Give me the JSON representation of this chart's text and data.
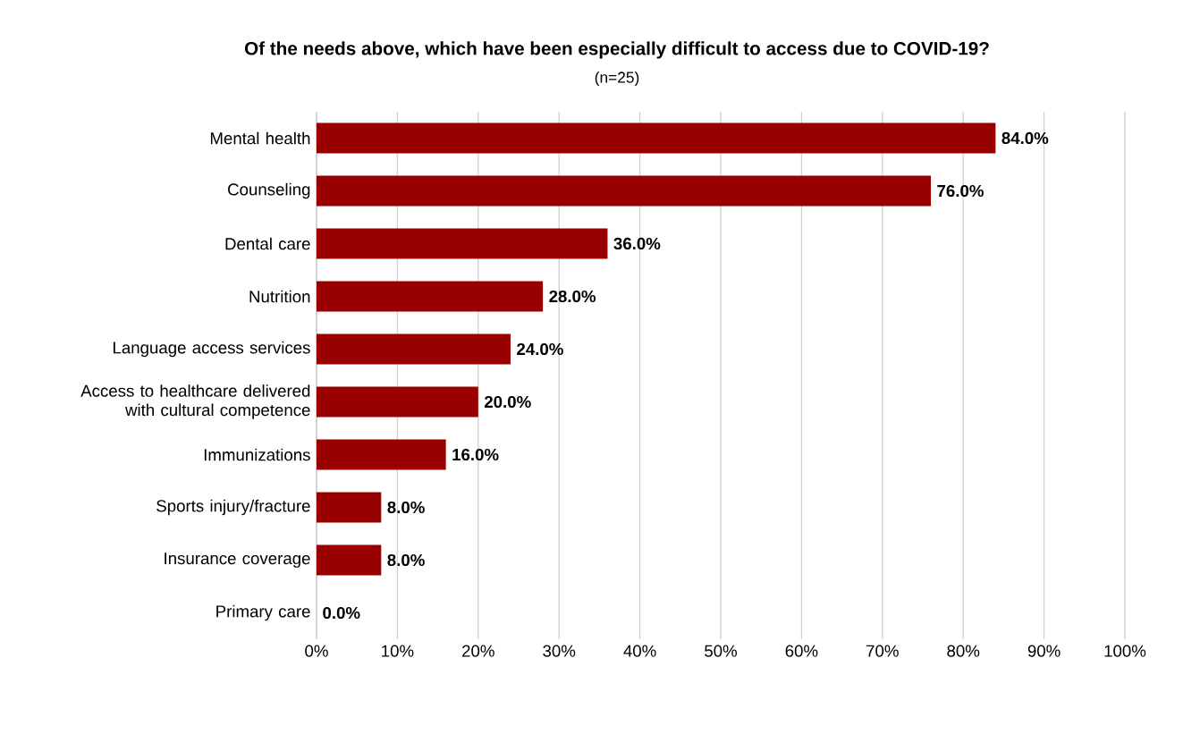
{
  "chart_data": {
    "type": "bar",
    "orientation": "horizontal",
    "title": "Of the needs above, which have been especially difficult to access due to COVID-19?",
    "subtitle": "(n=25)",
    "categories": [
      "Mental health",
      "Counseling",
      "Dental care",
      "Nutrition",
      "Language access services",
      "Access to healthcare delivered with cultural competence",
      "Immunizations",
      "Sports injury/fracture",
      "Insurance coverage",
      "Primary care"
    ],
    "values": [
      84,
      76,
      36,
      28,
      24,
      20,
      16,
      8,
      8,
      0
    ],
    "value_labels": [
      "84.0%",
      "76.0%",
      "36.0%",
      "28.0%",
      "24.0%",
      "20.0%",
      "16.0%",
      "8.0%",
      "8.0%",
      "0.0%"
    ],
    "color": "#990000",
    "xlim": [
      0,
      100
    ],
    "xticks": [
      {
        "value": 0,
        "label": "0%"
      },
      {
        "value": 10,
        "label": "10%"
      },
      {
        "value": 20,
        "label": "20%"
      },
      {
        "value": 30,
        "label": "30%"
      },
      {
        "value": 40,
        "label": "40%"
      },
      {
        "value": 50,
        "label": "50%"
      },
      {
        "value": 60,
        "label": "60%"
      },
      {
        "value": 70,
        "label": "70%"
      },
      {
        "value": 80,
        "label": "80%"
      },
      {
        "value": 90,
        "label": "90%"
      },
      {
        "value": 100,
        "label": "100%"
      }
    ],
    "grid": "x"
  }
}
